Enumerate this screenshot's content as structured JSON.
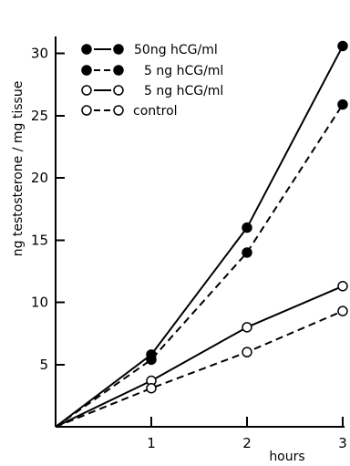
{
  "chart_data": {
    "type": "line",
    "title": "",
    "xlabel": "hours",
    "ylabel": "ng testosterone / mg tissue",
    "x": [
      0,
      1,
      2,
      3
    ],
    "xlim": [
      0,
      3
    ],
    "ylim": [
      0,
      31
    ],
    "xticks": [
      1,
      2,
      3
    ],
    "xtick_labels": [
      "1",
      "2",
      "3"
    ],
    "yticks": [
      5,
      10,
      15,
      20,
      25,
      30
    ],
    "ytick_labels": [
      "5",
      "10",
      "15",
      "20",
      "25",
      "30"
    ],
    "grid": false,
    "legend_position": "top-left",
    "series": [
      {
        "name": "50ng hCG/ml",
        "marker": "filled-circle",
        "line_style": "solid",
        "values": [
          0,
          5.8,
          16.0,
          30.6
        ]
      },
      {
        "name": "5 ng hCG/ml",
        "marker": "filled-circle",
        "line_style": "dashed",
        "values": [
          0,
          5.4,
          14.0,
          25.9
        ]
      },
      {
        "name": "5 ng hCG/ml",
        "marker": "open-circle",
        "line_style": "solid",
        "values": [
          0,
          3.7,
          8.0,
          11.3
        ]
      },
      {
        "name": "control",
        "marker": "open-circle",
        "line_style": "dashed",
        "values": [
          0,
          3.1,
          6.0,
          9.3
        ]
      }
    ]
  }
}
